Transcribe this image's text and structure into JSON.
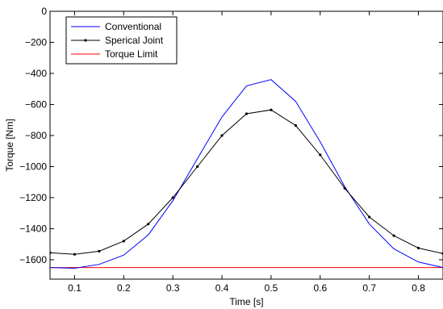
{
  "chart_data": {
    "type": "line",
    "title": "",
    "xlabel": "Time [s]",
    "ylabel": "Torque [Nm]",
    "xlim": [
      0.05,
      0.85
    ],
    "ylim": [
      -1725,
      0
    ],
    "x_ticks": [
      0.1,
      0.2,
      0.3,
      0.4,
      0.5,
      0.6,
      0.7,
      0.8
    ],
    "y_ticks": [
      0,
      -200,
      -400,
      -600,
      -800,
      -1000,
      -1200,
      -1400,
      -1600
    ],
    "x_tick_labels": [
      "0.1",
      "0.2",
      "0.3",
      "0.4",
      "0.5",
      "0.6",
      "0.7",
      "0.8"
    ],
    "y_tick_labels": [
      "0",
      "−200",
      "−400",
      "−600",
      "−800",
      "−1000",
      "−1200",
      "−1400",
      "−1600"
    ],
    "grid": false,
    "legend_position": "top-left",
    "series": [
      {
        "name": "Conventional",
        "color": "#0000ff",
        "marker": "none",
        "x": [
          0.05,
          0.1,
          0.15,
          0.2,
          0.25,
          0.3,
          0.35,
          0.4,
          0.45,
          0.5,
          0.55,
          0.6,
          0.65,
          0.7,
          0.75,
          0.8,
          0.85
        ],
        "y": [
          -1650,
          -1655,
          -1630,
          -1570,
          -1440,
          -1220,
          -950,
          -680,
          -480,
          -440,
          -580,
          -840,
          -1130,
          -1370,
          -1530,
          -1615,
          -1650
        ]
      },
      {
        "name": "Sperical Joint",
        "color": "#000000",
        "marker": "dot",
        "x": [
          0.05,
          0.1,
          0.15,
          0.2,
          0.25,
          0.3,
          0.35,
          0.4,
          0.45,
          0.5,
          0.55,
          0.6,
          0.65,
          0.7,
          0.75,
          0.8,
          0.85
        ],
        "y": [
          -1555,
          -1565,
          -1545,
          -1480,
          -1370,
          -1200,
          -1000,
          -800,
          -660,
          -635,
          -735,
          -925,
          -1140,
          -1325,
          -1445,
          -1525,
          -1560
        ]
      },
      {
        "name": "Torque Limit",
        "color": "#ff0000",
        "marker": "none",
        "x": [
          0.05,
          0.85
        ],
        "y": [
          -1650,
          -1650
        ]
      }
    ]
  }
}
